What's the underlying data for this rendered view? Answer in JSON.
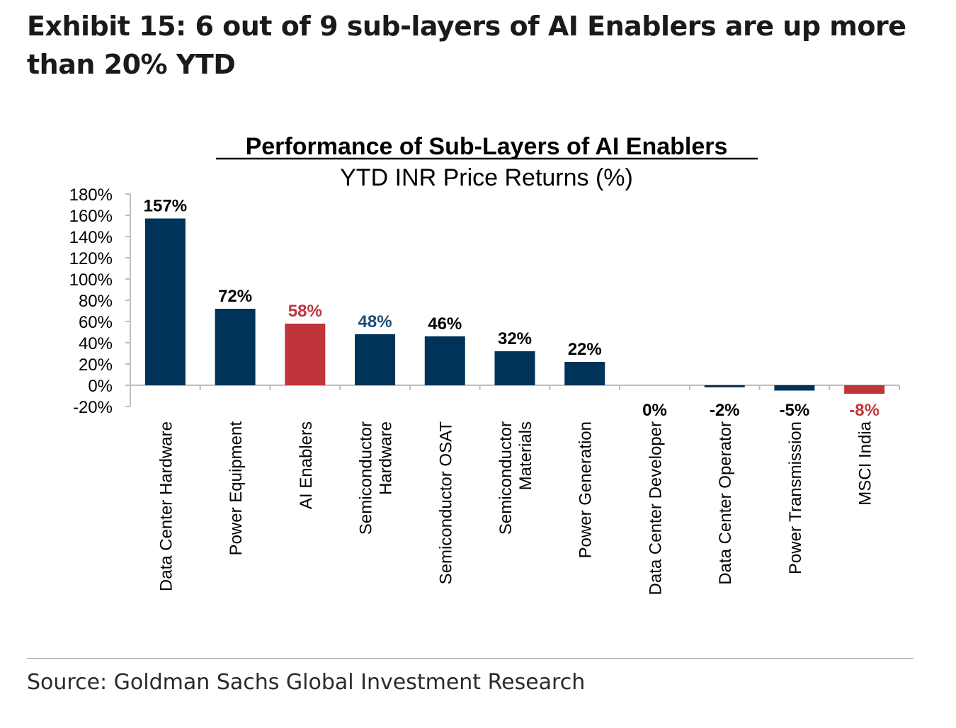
{
  "exhibit": {
    "title": "Exhibit 15: 6 out of 9 sub-layers of AI Enablers are up more than 20% YTD",
    "source": "Source: Goldman Sachs Global Investment Research"
  },
  "colors": {
    "navy": "#003359",
    "red": "#C0353A",
    "axis": "#bfbfbf"
  },
  "chart_data": {
    "type": "bar",
    "title": "Performance of Sub-Layers of AI Enablers",
    "subtitle": "YTD INR Price Returns (%)",
    "ylim": [
      -20,
      180
    ],
    "yticks": [
      {
        "value": 180,
        "label": "180%"
      },
      {
        "value": 160,
        "label": "160%"
      },
      {
        "value": 140,
        "label": "140%"
      },
      {
        "value": 120,
        "label": "120%"
      },
      {
        "value": 100,
        "label": "100%"
      },
      {
        "value": 80,
        "label": "80%"
      },
      {
        "value": 60,
        "label": "60%"
      },
      {
        "value": 40,
        "label": "40%"
      },
      {
        "value": 20,
        "label": "20%"
      },
      {
        "value": 0,
        "label": "0%"
      },
      {
        "value": -20,
        "label": "-20%"
      }
    ],
    "categories": [
      "Data Center Hardware",
      "Power Equipment",
      "AI Enablers",
      "Semiconductor Hardware",
      "Semiconductor OSAT",
      "Semiconductor Materials",
      "Power Generation",
      "Data Center Developer",
      "Data Center Operator",
      "Power Transmission",
      "MSCI India"
    ],
    "values": [
      157,
      72,
      58,
      48,
      46,
      32,
      22,
      0,
      -2,
      -5,
      -8
    ],
    "data_labels": [
      "157%",
      "72%",
      "58%",
      "48%",
      "46%",
      "32%",
      "22%",
      "0%",
      "-2%",
      "-5%",
      "-8%"
    ],
    "bar_colors": [
      "#003359",
      "#003359",
      "#C0353A",
      "#003359",
      "#003359",
      "#003359",
      "#003359",
      "#003359",
      "#003359",
      "#003359",
      "#C0353A"
    ],
    "label_colors": [
      "#000000",
      "#000000",
      "#C0353A",
      "#1F4E79",
      "#000000",
      "#000000",
      "#000000",
      "#000000",
      "#000000",
      "#000000",
      "#C0353A"
    ],
    "grid": false,
    "legend": "none"
  }
}
